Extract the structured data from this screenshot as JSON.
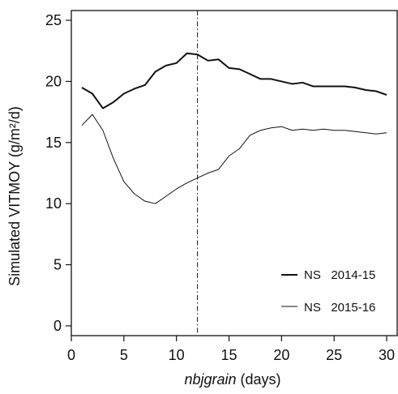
{
  "chart_data": {
    "type": "line",
    "ylabel": "Simulated VITMOY (g/m²/d)",
    "xlabel_italic": "nbjgrain",
    "xlabel_rest": " (days)",
    "xlim": [
      0,
      31
    ],
    "ylim": [
      -0.8,
      25.8
    ],
    "xticks": [
      0,
      5,
      10,
      15,
      20,
      25,
      30
    ],
    "yticks": [
      0,
      5,
      10,
      15,
      20,
      25
    ],
    "grid": false,
    "legend_position": "bottom-right",
    "vertical_reference_line": {
      "x": 12,
      "style": "dash-dot"
    },
    "series": [
      {
        "name": "NS   2014-15",
        "color": "#111111",
        "stroke_weight": "bold",
        "x": [
          1,
          2,
          3,
          4,
          5,
          6,
          7,
          8,
          9,
          10,
          11,
          12,
          13,
          14,
          15,
          16,
          17,
          18,
          19,
          20,
          21,
          22,
          23,
          24,
          25,
          26,
          27,
          28,
          29,
          30
        ],
        "y": [
          19.5,
          19.0,
          17.8,
          18.3,
          19.0,
          19.4,
          19.7,
          20.8,
          21.3,
          21.5,
          22.3,
          22.2,
          21.7,
          21.8,
          21.1,
          21.0,
          20.6,
          20.2,
          20.2,
          20.0,
          19.8,
          19.9,
          19.6,
          19.6,
          19.6,
          19.6,
          19.5,
          19.3,
          19.2,
          18.9
        ]
      },
      {
        "name": "NS   2015-16",
        "color": "#111111",
        "stroke_weight": "thin",
        "x": [
          1,
          2,
          3,
          4,
          5,
          6,
          7,
          8,
          9,
          10,
          11,
          12,
          13,
          14,
          15,
          16,
          17,
          18,
          19,
          20,
          21,
          22,
          23,
          24,
          25,
          26,
          27,
          28,
          29,
          30
        ],
        "y": [
          16.4,
          17.3,
          16.0,
          13.7,
          11.8,
          10.8,
          10.2,
          10.0,
          10.6,
          11.2,
          11.7,
          12.1,
          12.5,
          12.8,
          13.9,
          14.5,
          15.6,
          16.0,
          16.2,
          16.3,
          16.0,
          16.1,
          16.0,
          16.1,
          16.0,
          16.0,
          15.9,
          15.8,
          15.7,
          15.8
        ]
      }
    ]
  }
}
